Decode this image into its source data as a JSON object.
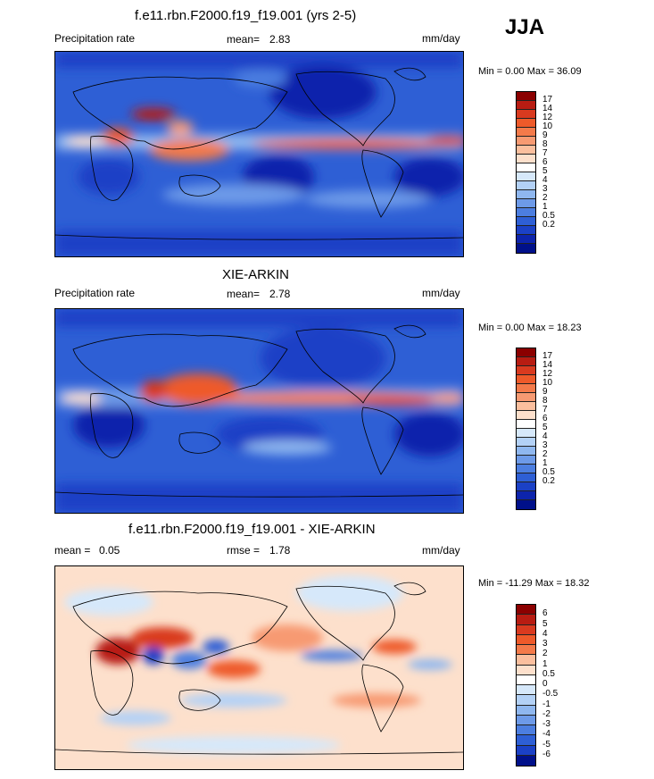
{
  "season": "JJA",
  "palette_abs": [
    "#8b0000",
    "#b81c12",
    "#d93a1f",
    "#ee5a2a",
    "#f47a4a",
    "#f79a72",
    "#fbbf9e",
    "#fde0cc",
    "#ffffff",
    "#d6e8fa",
    "#b3d1f6",
    "#8fb7ef",
    "#6d9ae8",
    "#4c7ee0",
    "#2e5fd5",
    "#1b41c6",
    "#0d24ac",
    "#00108a"
  ],
  "palette_diff": [
    "#8b0000",
    "#b81c12",
    "#d93a1f",
    "#ee5a2a",
    "#f47a4a",
    "#fbbf9e",
    "#fde0cc",
    "#ffffff",
    "#d6e8fa",
    "#b3d1f6",
    "#8fb7ef",
    "#6d9ae8",
    "#4c7ee0",
    "#2e5fd5",
    "#1b41c6",
    "#00108a"
  ],
  "panels": [
    {
      "title": "f.e11.rbn.F2000.f19_f19.001 (yrs 2-5)",
      "left_label": "Precipitation rate",
      "mean_label": "mean=",
      "mean_value": "2.83",
      "units": "mm/day",
      "minmax": "Min =   0.00 Max =  36.09",
      "ticks": [
        "17",
        "14",
        "12",
        "10",
        "9",
        "8",
        "7",
        "6",
        "5",
        "4",
        "3",
        "2",
        "1",
        "0.5",
        "0.2"
      ]
    },
    {
      "title": "XIE-ARKIN",
      "left_label": "Precipitation rate",
      "mean_label": "mean=",
      "mean_value": "2.78",
      "units": "mm/day",
      "minmax": "Min =   0.00 Max =  18.23",
      "ticks": [
        "17",
        "14",
        "12",
        "10",
        "9",
        "8",
        "7",
        "6",
        "5",
        "4",
        "3",
        "2",
        "1",
        "0.5",
        "0.2"
      ]
    },
    {
      "title": "f.e11.rbn.F2000.f19_f19.001 - XIE-ARKIN",
      "left_label": "mean =",
      "mean_value": "0.05",
      "rmse_label": "rmse =",
      "rmse_value": "1.78",
      "units": "mm/day",
      "minmax": "Min = -11.29 Max =  18.32",
      "ticks": [
        "6",
        "5",
        "4",
        "3",
        "2",
        "1",
        "0.5",
        "0",
        "-0.5",
        "-1",
        "-2",
        "-3",
        "-4",
        "-5",
        "-6"
      ]
    }
  ]
}
